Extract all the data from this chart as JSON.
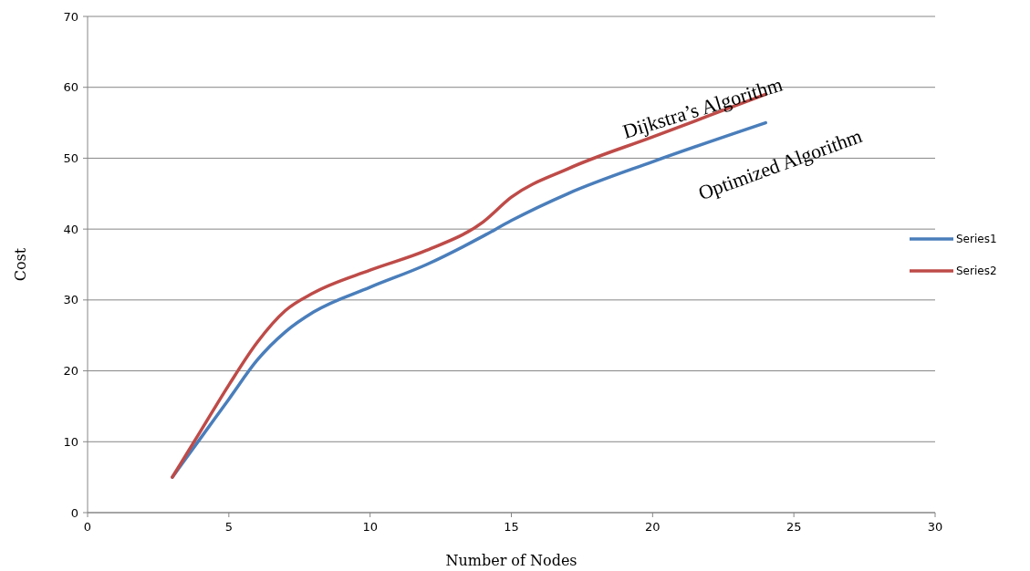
{
  "chart_data": {
    "type": "line",
    "xlabel": "Number of Nodes",
    "ylabel": "Cost",
    "xlim": [
      0,
      30
    ],
    "xticks": [
      0,
      5,
      10,
      15,
      20,
      25,
      30
    ],
    "ylim": [
      0,
      70
    ],
    "yticks": [
      0,
      10,
      20,
      30,
      40,
      50,
      60,
      70
    ],
    "grid": "y",
    "legend": "right",
    "marker": "none",
    "line_style": "solid",
    "x": [
      3,
      4,
      5,
      6,
      7,
      8,
      10,
      12,
      14,
      15,
      17,
      20,
      24
    ],
    "series": [
      {
        "name": "Series1",
        "color": "#4a7ebb",
        "values": [
          5,
          10.5,
          16,
          21.5,
          25.5,
          28.3,
          31.8,
          35,
          39,
          41.2,
          45,
          49.5,
          55
        ]
      },
      {
        "name": "Series2",
        "color": "#be4b48",
        "values": [
          5,
          11.5,
          18,
          24,
          28.5,
          31,
          34.2,
          37,
          41,
          44.5,
          48.5,
          53,
          59
        ]
      }
    ],
    "annotations": [
      "Dijkstra’s Algorithm",
      "Optimized Algorithm"
    ]
  }
}
